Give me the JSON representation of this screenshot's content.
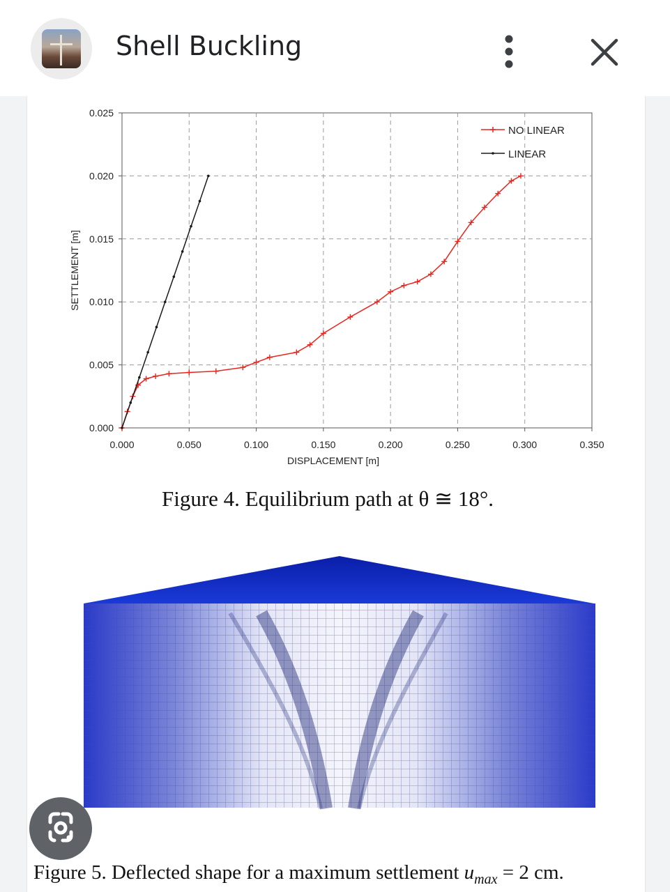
{
  "header": {
    "title": "Shell Buckling",
    "icons": {
      "thumbnail": "image-thumbnail",
      "more": "more-vert-icon",
      "close": "close-icon",
      "lens": "google-lens-icon"
    }
  },
  "figure4": {
    "caption": "Figure 4. Equilibrium path at θ ≅ 18°."
  },
  "figure5": {
    "caption_prefix": "Figure 5. Deflected shape for a maximum settlement ",
    "caption_var": "u",
    "caption_sub": "max",
    "caption_suffix": " = 2 cm."
  },
  "chart_data": {
    "type": "line",
    "title": "",
    "xlabel": "DISPLACEMENT [m]",
    "ylabel": "SETTLEMENT [m]",
    "xlim": [
      0,
      0.35
    ],
    "ylim": [
      0,
      0.025
    ],
    "x_ticks": [
      "0.000",
      "0.050",
      "0.100",
      "0.150",
      "0.200",
      "0.250",
      "0.300",
      "0.350"
    ],
    "y_ticks": [
      "0.000",
      "0.005",
      "0.010",
      "0.015",
      "0.020",
      "0.025"
    ],
    "grid": true,
    "legend_position": "top-right",
    "series": [
      {
        "name": "NO LINEAR",
        "color": "#e8251e",
        "marker": "plus",
        "x": [
          0.0,
          0.004,
          0.008,
          0.012,
          0.018,
          0.025,
          0.035,
          0.05,
          0.07,
          0.09,
          0.1,
          0.11,
          0.13,
          0.14,
          0.15,
          0.17,
          0.19,
          0.2,
          0.21,
          0.22,
          0.23,
          0.24,
          0.25,
          0.26,
          0.27,
          0.28,
          0.29,
          0.297
        ],
        "y": [
          0.0,
          0.0013,
          0.0025,
          0.0034,
          0.0039,
          0.0041,
          0.0043,
          0.0044,
          0.0045,
          0.0048,
          0.0052,
          0.0056,
          0.006,
          0.0066,
          0.0075,
          0.0088,
          0.01,
          0.0108,
          0.0113,
          0.0116,
          0.0122,
          0.0132,
          0.0148,
          0.0163,
          0.0175,
          0.0186,
          0.0196,
          0.02
        ]
      },
      {
        "name": "LINEAR",
        "color": "#1a1a1a",
        "marker": "dot",
        "x": [
          0.0,
          0.0064,
          0.0129,
          0.0193,
          0.0257,
          0.0321,
          0.0386,
          0.045,
          0.0514,
          0.0579,
          0.0643
        ],
        "y": [
          0.0,
          0.002,
          0.004,
          0.006,
          0.008,
          0.01,
          0.012,
          0.014,
          0.016,
          0.018,
          0.02
        ]
      }
    ]
  }
}
